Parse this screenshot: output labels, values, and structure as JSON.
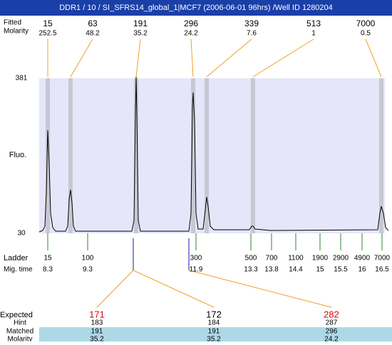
{
  "title": "DDR1 / 10 / SI_SFRS14_global_1|MCF7 (2006-06-01 96hrs) /Well ID 1280204",
  "peaks": {
    "row_labels": [
      "Fitted",
      "Molarity"
    ],
    "sizes": [
      15,
      63,
      191,
      296,
      339,
      513,
      7000
    ],
    "molarity": [
      252.5,
      48.2,
      35.2,
      24.2,
      7.6,
      1,
      0.5
    ]
  },
  "axis": {
    "label": "Fluo.",
    "max": 381,
    "min": 30
  },
  "ladder": {
    "row_labels": [
      "Ladder",
      "Mig. time"
    ],
    "sizes": [
      15,
      100,
      300,
      500,
      700,
      1100,
      1900,
      2900,
      4900,
      7000
    ],
    "mig_times": [
      8.3,
      9.3,
      11.9,
      13.3,
      13.8,
      14.4,
      15,
      15.5,
      16,
      16.5
    ]
  },
  "table": {
    "row_labels": [
      "Expected",
      "Hint",
      "Matched",
      "Molarity"
    ],
    "expected": [
      171,
      172,
      282
    ],
    "expected_colors": [
      "#e00000",
      "#000000",
      "#e00000"
    ],
    "hint": [
      183,
      184,
      287
    ],
    "matched": [
      191,
      191,
      296
    ],
    "molarity": [
      35.2,
      35.2,
      24.2
    ]
  }
}
